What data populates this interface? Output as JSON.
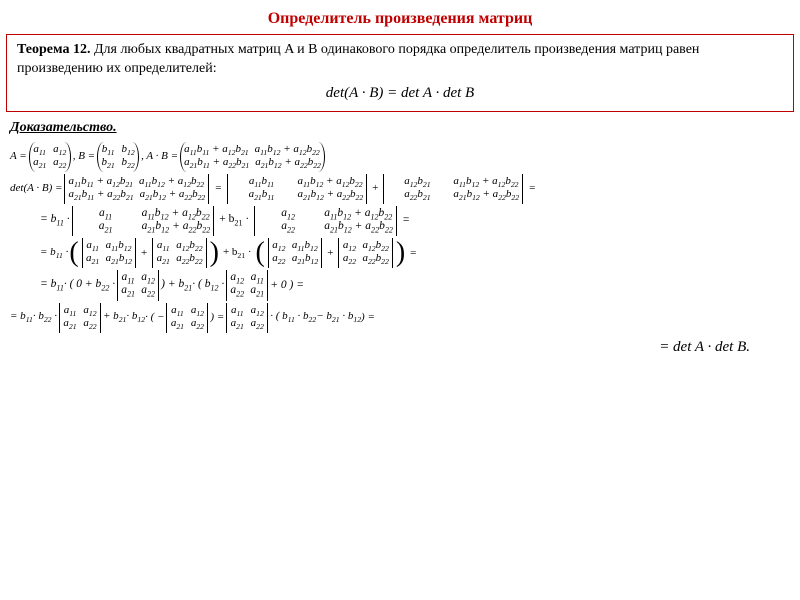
{
  "title": "Определитель произведения матриц",
  "theorem": {
    "label": "Теорема 12.",
    "text": " Для любых квадратных матриц A и B одинакового порядка определитель произведения матриц равен произведению их определителей:",
    "formula": "det(A · B) = det A · det B"
  },
  "proof_label": "Доказательство.",
  "sym": {
    "A": "A",
    "B": "B",
    "a11": "a",
    "a12": "a",
    "a21": "a",
    "a22": "a",
    "b11": "b",
    "b12": "b",
    "b21": "b",
    "b22": "b"
  },
  "line1_prefix": "A =",
  "line1_mid": ",  B =",
  "line1_ab": ",  A · B =",
  "line2_prefix": "det(A · B) =",
  "line3_prefix": "= b",
  "line4_prefix": "= b",
  "line5_prefix": "= b",
  "line5_mid1": "· ( 0 + b",
  "line5_mid2": ") + b",
  "line5_mid3": "· ( b",
  "line5_end": "+ 0 ) =",
  "line6_prefix": "= b",
  "line6_b22": "· b",
  "line6_plus_b21": "+ b",
  "line6_b12": "· b",
  "line6_paren_open": "· ( −",
  "line6_paren_close": ") =",
  "line6_factor": "· ( b",
  "line6_minus": "− b",
  "line6_close2": ") =",
  "final": "= det A · det B.",
  "colors": {
    "title": "#c00000",
    "border": "#c00000",
    "text": "#000000",
    "bg": "#ffffff"
  }
}
